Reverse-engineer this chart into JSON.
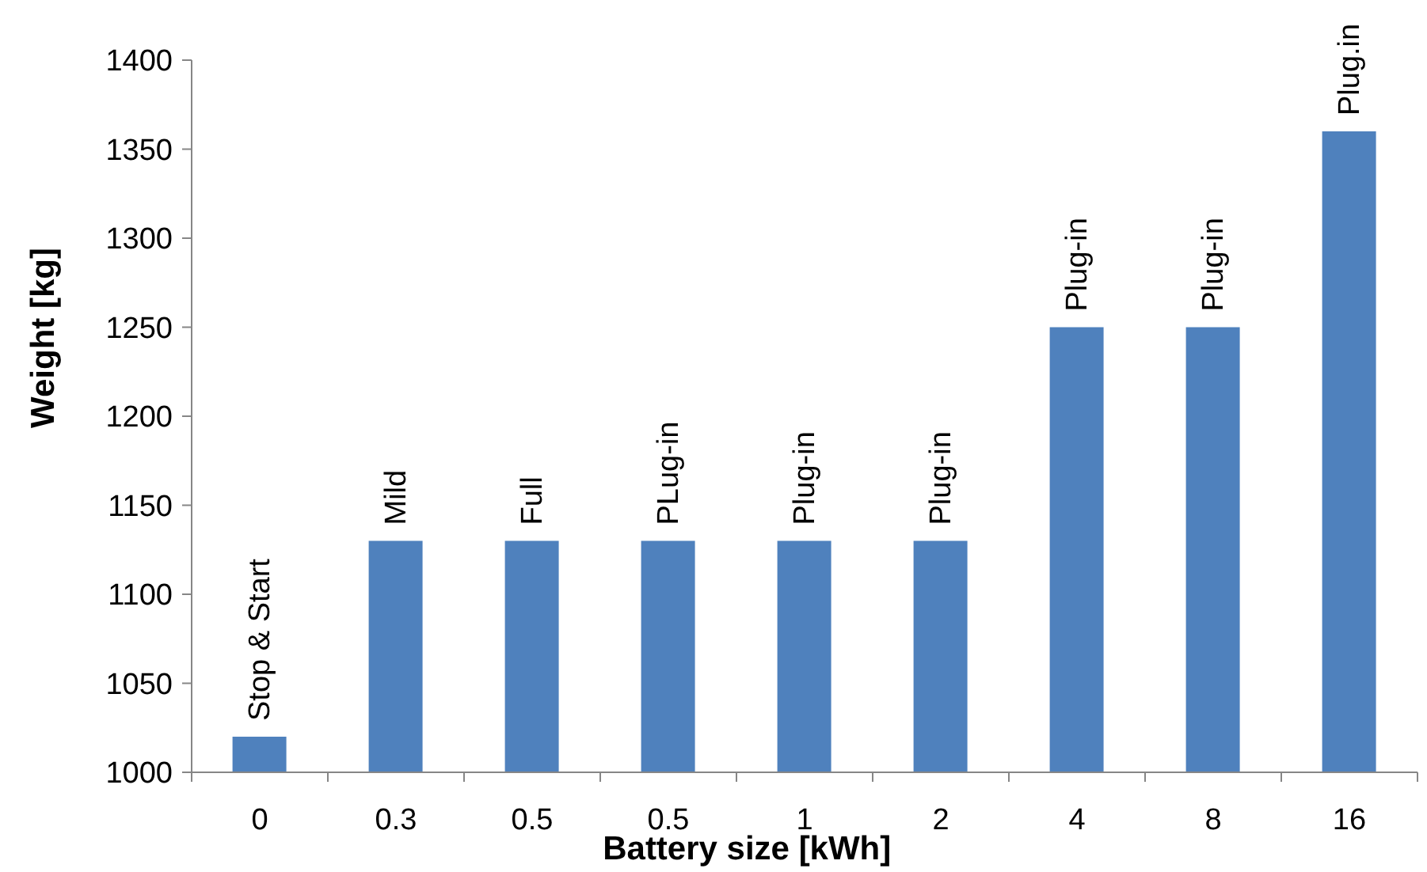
{
  "chart_data": {
    "type": "bar",
    "xlabel": "Battery size [kWh]",
    "ylabel": "Weight [kg]",
    "categories": [
      "0",
      "0.3",
      "0.5",
      "0.5",
      "1",
      "2",
      "4",
      "8",
      "16"
    ],
    "values": [
      1020,
      1130,
      1130,
      1130,
      1130,
      1130,
      1250,
      1250,
      1360
    ],
    "value_labels": [
      "Stop & Start",
      "Mild",
      "Full",
      "PLug-in",
      "Plug-in",
      "Plug-in",
      "Plug-in",
      "Plug-in",
      "Plug.in"
    ],
    "color": "#4f81bd",
    "ylim": [
      1000,
      1400
    ],
    "yticks": [
      1000,
      1050,
      1100,
      1150,
      1200,
      1250,
      1300,
      1350,
      1400
    ]
  }
}
